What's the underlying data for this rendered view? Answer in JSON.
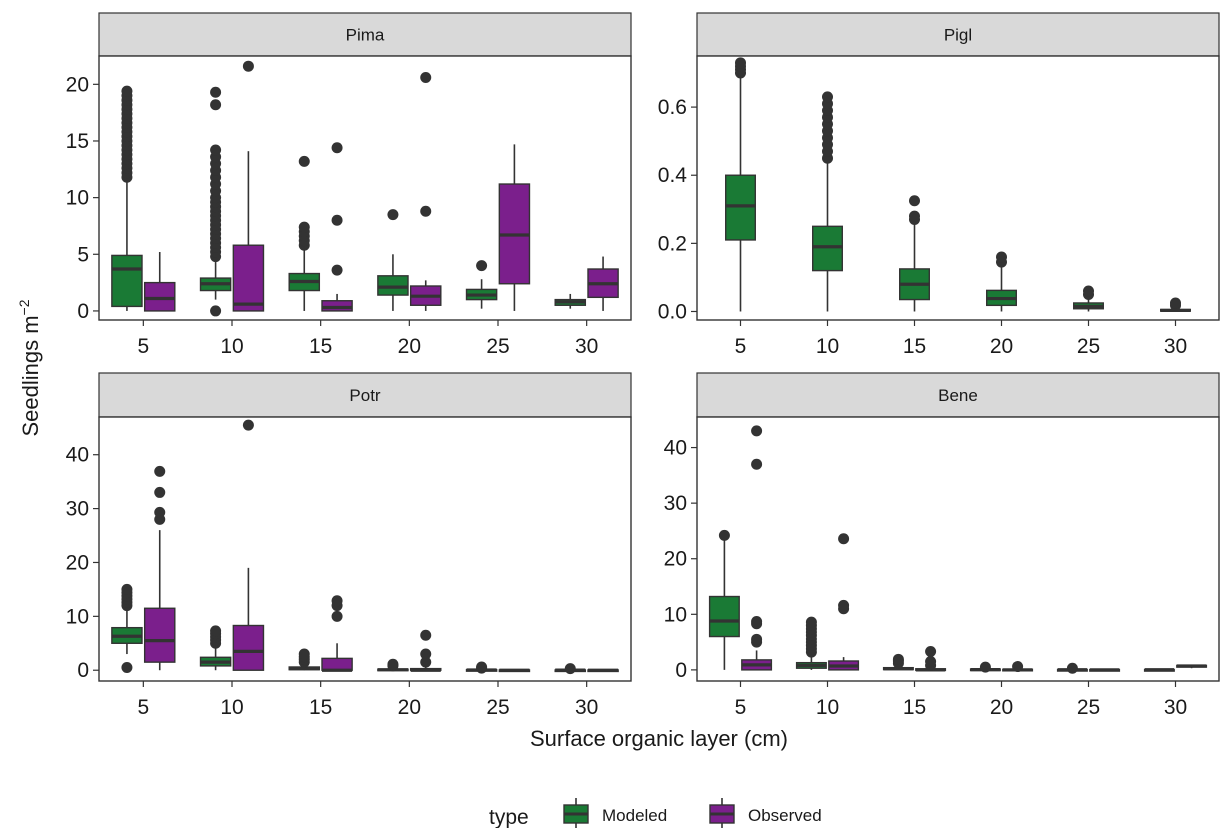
{
  "chart_data": {
    "type": "boxplot",
    "xlabel": "Surface organic layer (cm)",
    "ylabel": "Seedlings m",
    "ylabel_superscript": "−2",
    "categories": [
      "5",
      "10",
      "15",
      "20",
      "25",
      "30"
    ],
    "legend": {
      "title": "type",
      "placement": "bottom",
      "entries": [
        {
          "name": "Modeled",
          "color": "#1a7a35"
        },
        {
          "name": "Observed",
          "color": "#7b1f8c"
        }
      ]
    },
    "grid": false,
    "facets": [
      {
        "title": "Pima",
        "ylim": [
          -0.8,
          22.5
        ],
        "yticks": [
          0,
          5,
          10,
          15,
          20
        ],
        "boxes": [
          {
            "category": "5",
            "type": "Modeled",
            "min": 0.0,
            "q1": 0.4,
            "median": 3.7,
            "q3": 4.9,
            "max": 11.5,
            "outliers": [
              11.8,
              12.2,
              12.6,
              13.0,
              13.4,
              13.8,
              14.2,
              14.6,
              15.0,
              15.4,
              15.8,
              16.2,
              16.6,
              17.0,
              17.4,
              17.8,
              18.2,
              18.6,
              19.0,
              19.4
            ]
          },
          {
            "category": "5",
            "type": "Observed",
            "min": 0.0,
            "q1": 0.0,
            "median": 1.1,
            "q3": 2.5,
            "max": 5.2,
            "outliers": []
          },
          {
            "category": "10",
            "type": "Modeled",
            "min": 1.0,
            "q1": 1.8,
            "median": 2.4,
            "q3": 2.9,
            "max": 4.5,
            "outliers": [
              0.0,
              4.8,
              5.2,
              5.6,
              6.0,
              6.4,
              6.8,
              7.2,
              7.6,
              8.0,
              8.4,
              8.8,
              9.2,
              9.6,
              10.0,
              10.6,
              11.2,
              11.8,
              12.4,
              13.0,
              13.6,
              14.2,
              18.2,
              19.3
            ]
          },
          {
            "category": "10",
            "type": "Observed",
            "min": 0.0,
            "q1": 0.0,
            "median": 0.6,
            "q3": 5.8,
            "max": 14.1,
            "outliers": [
              21.6
            ]
          },
          {
            "category": "15",
            "type": "Modeled",
            "min": 0.0,
            "q1": 1.8,
            "median": 2.6,
            "q3": 3.3,
            "max": 5.5,
            "outliers": [
              5.8,
              6.2,
              6.6,
              7.0,
              7.4,
              13.2
            ]
          },
          {
            "category": "15",
            "type": "Observed",
            "min": 0.0,
            "q1": 0.0,
            "median": 0.3,
            "q3": 0.9,
            "max": 1.5,
            "outliers": [
              3.6,
              8.0,
              14.4
            ]
          },
          {
            "category": "20",
            "type": "Modeled",
            "min": 0.0,
            "q1": 1.4,
            "median": 2.1,
            "q3": 3.1,
            "max": 5.0,
            "outliers": [
              8.5
            ]
          },
          {
            "category": "20",
            "type": "Observed",
            "min": 0.0,
            "q1": 0.5,
            "median": 1.3,
            "q3": 2.2,
            "max": 2.7,
            "outliers": [
              8.8,
              20.6
            ]
          },
          {
            "category": "25",
            "type": "Modeled",
            "min": 0.2,
            "q1": 1.0,
            "median": 1.4,
            "q3": 1.9,
            "max": 2.8,
            "outliers": [
              4.0
            ]
          },
          {
            "category": "25",
            "type": "Observed",
            "min": 0.0,
            "q1": 2.4,
            "median": 6.7,
            "q3": 11.2,
            "max": 14.7,
            "outliers": []
          },
          {
            "category": "30",
            "type": "Modeled",
            "min": 0.2,
            "q1": 0.5,
            "median": 0.8,
            "q3": 1.0,
            "max": 1.5,
            "outliers": []
          },
          {
            "category": "30",
            "type": "Observed",
            "min": 0.0,
            "q1": 1.2,
            "median": 2.4,
            "q3": 3.7,
            "max": 4.8,
            "outliers": []
          }
        ]
      },
      {
        "title": "Pigl",
        "ylim": [
          -0.025,
          0.75
        ],
        "yticks": [
          0.0,
          0.2,
          0.4,
          0.6
        ],
        "tick_decimals": 1,
        "boxes": [
          {
            "category": "5",
            "type": "Modeled",
            "min": 0.0,
            "q1": 0.21,
            "median": 0.31,
            "q3": 0.4,
            "max": 0.69,
            "outliers": [
              0.7,
              0.71,
              0.72,
              0.73
            ]
          },
          {
            "category": "10",
            "type": "Modeled",
            "min": 0.0,
            "q1": 0.12,
            "median": 0.19,
            "q3": 0.25,
            "max": 0.44,
            "outliers": [
              0.45,
              0.47,
              0.49,
              0.51,
              0.53,
              0.55,
              0.57,
              0.59,
              0.61,
              0.63
            ]
          },
          {
            "category": "15",
            "type": "Modeled",
            "min": 0.0,
            "q1": 0.035,
            "median": 0.08,
            "q3": 0.125,
            "max": 0.26,
            "outliers": [
              0.27,
              0.28,
              0.325
            ]
          },
          {
            "category": "20",
            "type": "Modeled",
            "min": 0.0,
            "q1": 0.018,
            "median": 0.038,
            "q3": 0.062,
            "max": 0.13,
            "outliers": [
              0.145,
              0.16
            ]
          },
          {
            "category": "25",
            "type": "Modeled",
            "min": 0.0,
            "q1": 0.008,
            "median": 0.015,
            "q3": 0.025,
            "max": 0.045,
            "outliers": [
              0.05,
              0.06
            ]
          },
          {
            "category": "30",
            "type": "Modeled",
            "min": 0.0,
            "q1": 0.001,
            "median": 0.003,
            "q3": 0.006,
            "max": 0.012,
            "outliers": [
              0.018,
              0.025
            ]
          }
        ]
      },
      {
        "title": "Potr",
        "ylim": [
          -2,
          47
        ],
        "yticks": [
          0,
          10,
          20,
          30,
          40
        ],
        "boxes": [
          {
            "category": "5",
            "type": "Modeled",
            "min": 3.0,
            "q1": 5.0,
            "median": 6.3,
            "q3": 7.9,
            "max": 11.0,
            "outliers": [
              0.5,
              12.0,
              12.6,
              13.2,
              13.8,
              14.4,
              15.0
            ]
          },
          {
            "category": "5",
            "type": "Observed",
            "min": 0.0,
            "q1": 1.5,
            "median": 5.5,
            "q3": 11.5,
            "max": 26.0,
            "outliers": [
              28.0,
              29.3,
              33.0,
              36.9
            ]
          },
          {
            "category": "10",
            "type": "Modeled",
            "min": 0.0,
            "q1": 0.8,
            "median": 1.5,
            "q3": 2.4,
            "max": 4.5,
            "outliers": [
              5.0,
              5.6,
              6.2,
              6.8,
              7.3
            ]
          },
          {
            "category": "10",
            "type": "Observed",
            "min": 0.0,
            "q1": 0.0,
            "median": 3.5,
            "q3": 8.3,
            "max": 19.0,
            "outliers": [
              45.5
            ]
          },
          {
            "category": "15",
            "type": "Modeled",
            "min": 0.0,
            "q1": 0.1,
            "median": 0.3,
            "q3": 0.6,
            "max": 1.2,
            "outliers": [
              1.5,
              2.0,
              2.5,
              3.0
            ]
          },
          {
            "category": "15",
            "type": "Observed",
            "min": 0.0,
            "q1": 0.0,
            "median": 0.0,
            "q3": 2.2,
            "max": 5.0,
            "outliers": [
              10.0,
              12.0,
              12.9
            ]
          },
          {
            "category": "20",
            "type": "Modeled",
            "min": 0.0,
            "q1": 0.0,
            "median": 0.1,
            "q3": 0.2,
            "max": 0.5,
            "outliers": [
              0.8,
              1.1
            ]
          },
          {
            "category": "20",
            "type": "Observed",
            "min": 0.0,
            "q1": 0.0,
            "median": 0.0,
            "q3": 0.3,
            "max": 0.8,
            "outliers": [
              1.5,
              3.0,
              6.5
            ]
          },
          {
            "category": "25",
            "type": "Modeled",
            "min": 0.0,
            "q1": 0.0,
            "median": 0.05,
            "q3": 0.1,
            "max": 0.25,
            "outliers": [
              0.4,
              0.6
            ]
          },
          {
            "category": "25",
            "type": "Observed",
            "min": 0.0,
            "q1": 0.0,
            "median": 0.0,
            "q3": 0.05,
            "max": 0.1,
            "outliers": []
          },
          {
            "category": "30",
            "type": "Modeled",
            "min": 0.0,
            "q1": 0.0,
            "median": 0.02,
            "q3": 0.05,
            "max": 0.1,
            "outliers": [
              0.3
            ]
          },
          {
            "category": "30",
            "type": "Observed",
            "min": 0.0,
            "q1": 0.0,
            "median": 0.0,
            "q3": 0.05,
            "max": 0.1,
            "outliers": []
          }
        ]
      },
      {
        "title": "Bene",
        "ylim": [
          -2,
          45.5
        ],
        "yticks": [
          0,
          10,
          20,
          30,
          40
        ],
        "boxes": [
          {
            "category": "5",
            "type": "Modeled",
            "min": 0.0,
            "q1": 6.0,
            "median": 8.8,
            "q3": 13.2,
            "max": 23.8,
            "outliers": [
              24.2
            ]
          },
          {
            "category": "5",
            "type": "Observed",
            "min": 0.0,
            "q1": 0.0,
            "median": 0.9,
            "q3": 1.8,
            "max": 3.5,
            "outliers": [
              5.0,
              5.5,
              8.3,
              8.7,
              37.0,
              43.0
            ]
          },
          {
            "category": "10",
            "type": "Modeled",
            "min": 0.0,
            "q1": 0.3,
            "median": 0.8,
            "q3": 1.3,
            "max": 2.8,
            "outliers": [
              3.2,
              3.8,
              4.4,
              5.0,
              5.6,
              6.2,
              6.8,
              7.4,
              8.0,
              8.6
            ]
          },
          {
            "category": "10",
            "type": "Observed",
            "min": 0.0,
            "q1": 0.0,
            "median": 0.7,
            "q3": 1.6,
            "max": 2.3,
            "outliers": [
              11.0,
              11.6,
              23.6
            ]
          },
          {
            "category": "15",
            "type": "Modeled",
            "min": 0.0,
            "q1": 0.05,
            "median": 0.2,
            "q3": 0.4,
            "max": 0.9,
            "outliers": [
              1.2,
              1.6,
              1.9
            ]
          },
          {
            "category": "15",
            "type": "Observed",
            "min": 0.0,
            "q1": 0.0,
            "median": 0.0,
            "q3": 0.2,
            "max": 0.4,
            "outliers": [
              0.8,
              1.5,
              3.3
            ]
          },
          {
            "category": "20",
            "type": "Modeled",
            "min": 0.0,
            "q1": 0.0,
            "median": 0.05,
            "q3": 0.15,
            "max": 0.3,
            "outliers": [
              0.5
            ]
          },
          {
            "category": "20",
            "type": "Observed",
            "min": 0.0,
            "q1": 0.0,
            "median": 0.0,
            "q3": 0.1,
            "max": 0.3,
            "outliers": [
              0.6
            ]
          },
          {
            "category": "25",
            "type": "Modeled",
            "min": 0.0,
            "q1": 0.0,
            "median": 0.02,
            "q3": 0.06,
            "max": 0.1,
            "outliers": [
              0.3
            ]
          },
          {
            "category": "25",
            "type": "Observed",
            "min": 0.0,
            "q1": 0.0,
            "median": 0.0,
            "q3": 0.05,
            "max": 0.1,
            "outliers": []
          },
          {
            "category": "30",
            "type": "Modeled",
            "min": 0.0,
            "q1": 0.0,
            "median": 0.02,
            "q3": 0.05,
            "max": 0.1,
            "outliers": []
          },
          {
            "category": "30",
            "type": "Observed",
            "min": 0.3,
            "q1": 0.5,
            "median": 0.7,
            "q3": 0.8,
            "max": 0.9,
            "outliers": []
          }
        ]
      }
    ]
  }
}
